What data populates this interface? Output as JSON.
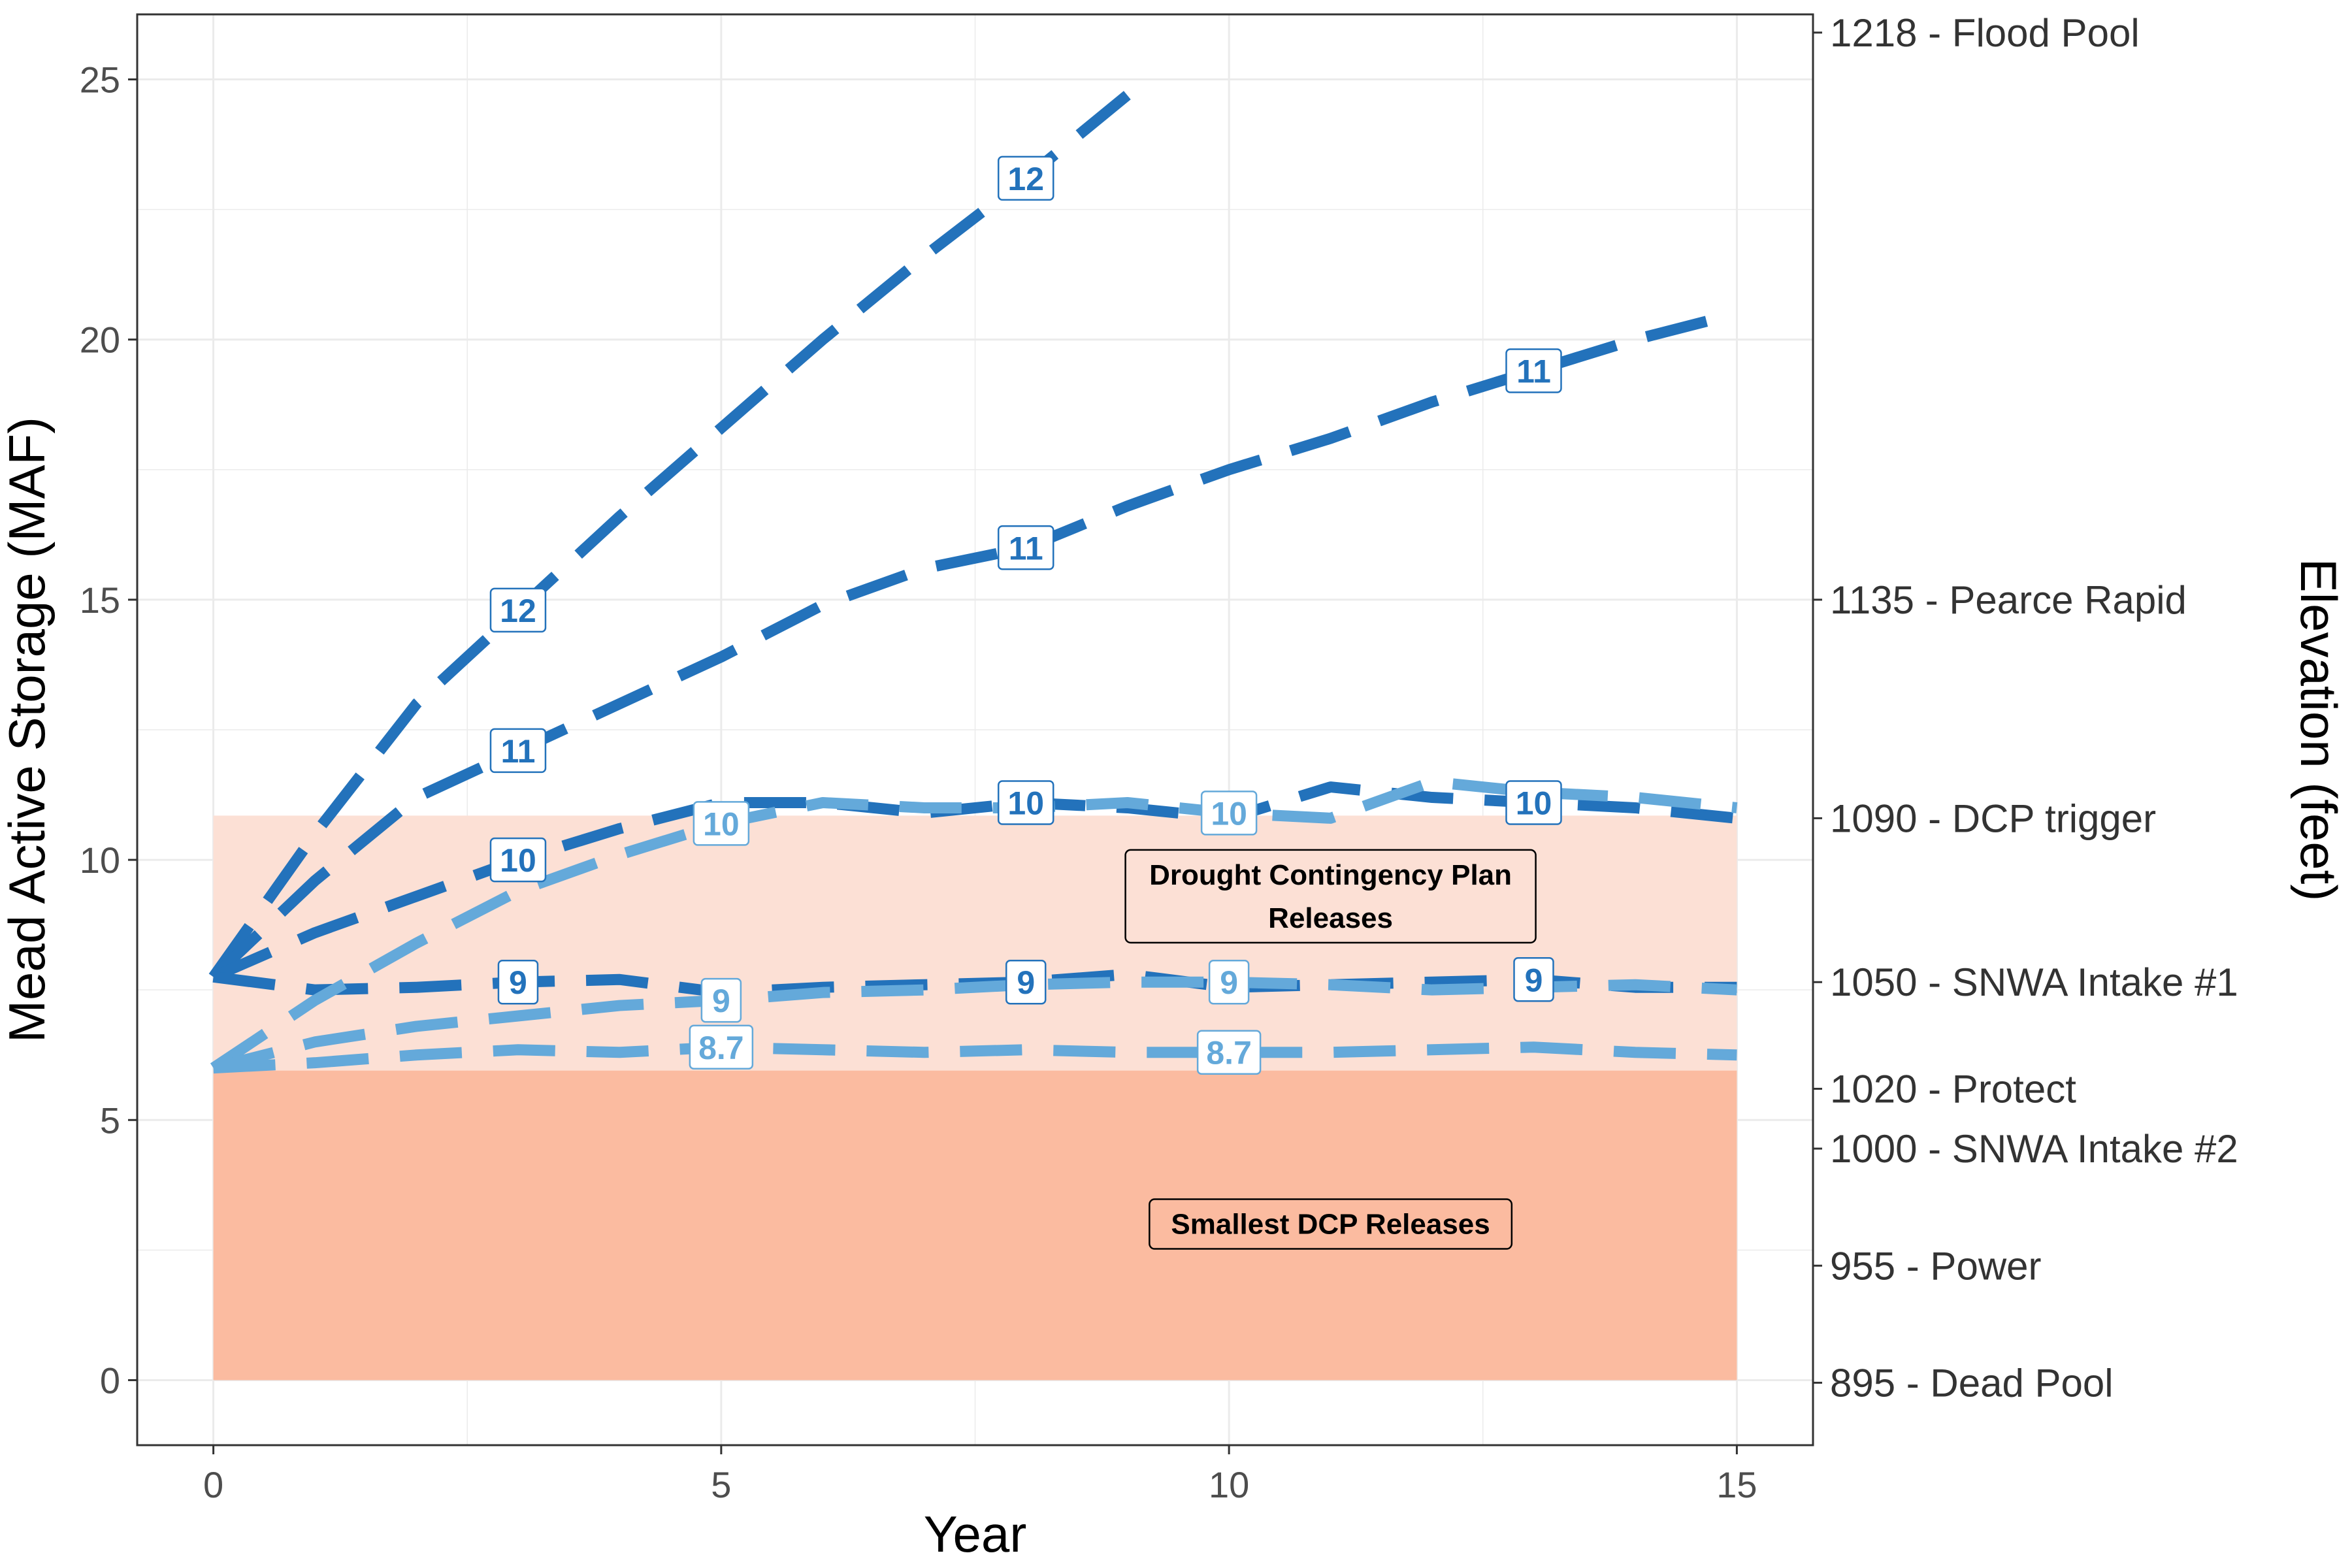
{
  "chart_data": {
    "type": "line",
    "xlabel": "Year",
    "ylabel": "Mead Active Storage (MAF)",
    "y2label": "Elevation (feet)",
    "xlim": [
      -0.75,
      15.75
    ],
    "ylim": [
      -1.25,
      26.25
    ],
    "x_ticks": [
      0,
      5,
      10,
      15
    ],
    "y_ticks": [
      0,
      5,
      10,
      15,
      20,
      25
    ],
    "grid": true,
    "right_axis_labels": [
      {
        "y": 25.9,
        "label": "1218 - Flood Pool"
      },
      {
        "y": 15.0,
        "label": "1135 - Pearce Rapid"
      },
      {
        "y": 10.8,
        "label": "1090 - DCP trigger"
      },
      {
        "y": 7.65,
        "label": "1050 - SNWA Intake #1"
      },
      {
        "y": 5.6,
        "label": "1020 - Protect"
      },
      {
        "y": 4.45,
        "label": "1000 - SNWA Intake #2"
      },
      {
        "y": 2.2,
        "label": "955 - Power"
      },
      {
        "y": -0.05,
        "label": "895 - Dead Pool"
      }
    ],
    "regions": [
      {
        "name": "Drought Contingency Plan Releases",
        "y0": 5.95,
        "y1": 10.85,
        "x0": 0,
        "x1": 15,
        "color": "#fce0d5",
        "label_lines": [
          "Drought Contingency Plan",
          "Releases"
        ],
        "label_x": 11,
        "label_y": 9.3
      },
      {
        "name": "Smallest DCP Releases",
        "y0": 0,
        "y1": 5.95,
        "x0": 0,
        "x1": 15,
        "color": "#fbbba0",
        "label_lines": [
          "Smallest DCP Releases"
        ],
        "label_x": 11,
        "label_y": 3.0
      }
    ],
    "colors": {
      "dark": "#2372bb",
      "light": "#64a9da"
    },
    "series": [
      {
        "name": "12",
        "color": "dark",
        "x": [
          0,
          1,
          2,
          3,
          4,
          5,
          6,
          7,
          8,
          9
        ],
        "y": [
          7.75,
          10.5,
          13.0,
          14.8,
          16.6,
          18.3,
          20.0,
          21.6,
          23.1,
          24.7
        ],
        "labels": [
          3,
          8
        ]
      },
      {
        "name": "11",
        "color": "dark",
        "x": [
          0,
          1,
          2,
          3,
          4,
          5,
          6,
          7,
          8,
          9,
          10,
          11,
          12,
          13,
          14,
          15
        ],
        "y": [
          7.75,
          9.6,
          11.2,
          12.1,
          13.0,
          13.9,
          14.9,
          15.6,
          16.0,
          16.8,
          17.5,
          18.1,
          18.8,
          19.4,
          20.0,
          20.5
        ],
        "labels": [
          3,
          8,
          13
        ]
      },
      {
        "name": "10",
        "color": "dark",
        "x": [
          0,
          1,
          2,
          3,
          4,
          5,
          6,
          7,
          8,
          9,
          10,
          11,
          12,
          13,
          14,
          15
        ],
        "y": [
          7.75,
          8.6,
          9.3,
          10.0,
          10.6,
          11.1,
          11.1,
          10.9,
          11.1,
          11.0,
          10.8,
          11.4,
          11.2,
          11.1,
          11.0,
          10.8
        ],
        "labels": [
          3,
          8,
          13
        ]
      },
      {
        "name": "9",
        "color": "dark",
        "x": [
          0,
          1,
          2,
          3,
          4,
          5,
          6,
          7,
          8,
          9,
          10,
          11,
          12,
          13,
          14,
          15
        ],
        "y": [
          7.75,
          7.5,
          7.55,
          7.65,
          7.7,
          7.45,
          7.55,
          7.6,
          7.65,
          7.8,
          7.55,
          7.6,
          7.65,
          7.7,
          7.55,
          7.55
        ],
        "labels": [
          3,
          8,
          13
        ]
      },
      {
        "name": "10",
        "color": "light",
        "x": [
          0,
          1,
          2,
          3,
          4,
          5,
          6,
          7,
          8,
          9,
          10,
          11,
          12,
          13,
          14,
          15
        ],
        "y": [
          6.0,
          7.3,
          8.4,
          9.4,
          10.1,
          10.7,
          11.1,
          11.0,
          11.0,
          11.1,
          10.9,
          10.8,
          11.5,
          11.3,
          11.2,
          11.0
        ],
        "labels": [
          5,
          10
        ]
      },
      {
        "name": "9",
        "color": "light",
        "x": [
          0,
          1,
          2,
          3,
          4,
          5,
          6,
          7,
          8,
          9,
          10,
          11,
          12,
          13,
          14,
          15
        ],
        "y": [
          6.0,
          6.5,
          6.8,
          7.0,
          7.2,
          7.3,
          7.45,
          7.5,
          7.6,
          7.65,
          7.65,
          7.6,
          7.5,
          7.55,
          7.6,
          7.5
        ],
        "labels": [
          5,
          10
        ]
      },
      {
        "name": "8.7",
        "color": "light",
        "x": [
          0,
          1,
          2,
          3,
          4,
          5,
          6,
          7,
          8,
          9,
          10,
          11,
          12,
          13,
          14,
          15
        ],
        "y": [
          6.0,
          6.1,
          6.25,
          6.35,
          6.3,
          6.4,
          6.35,
          6.3,
          6.35,
          6.3,
          6.3,
          6.3,
          6.35,
          6.4,
          6.3,
          6.25
        ],
        "labels": [
          5,
          10
        ]
      }
    ]
  }
}
